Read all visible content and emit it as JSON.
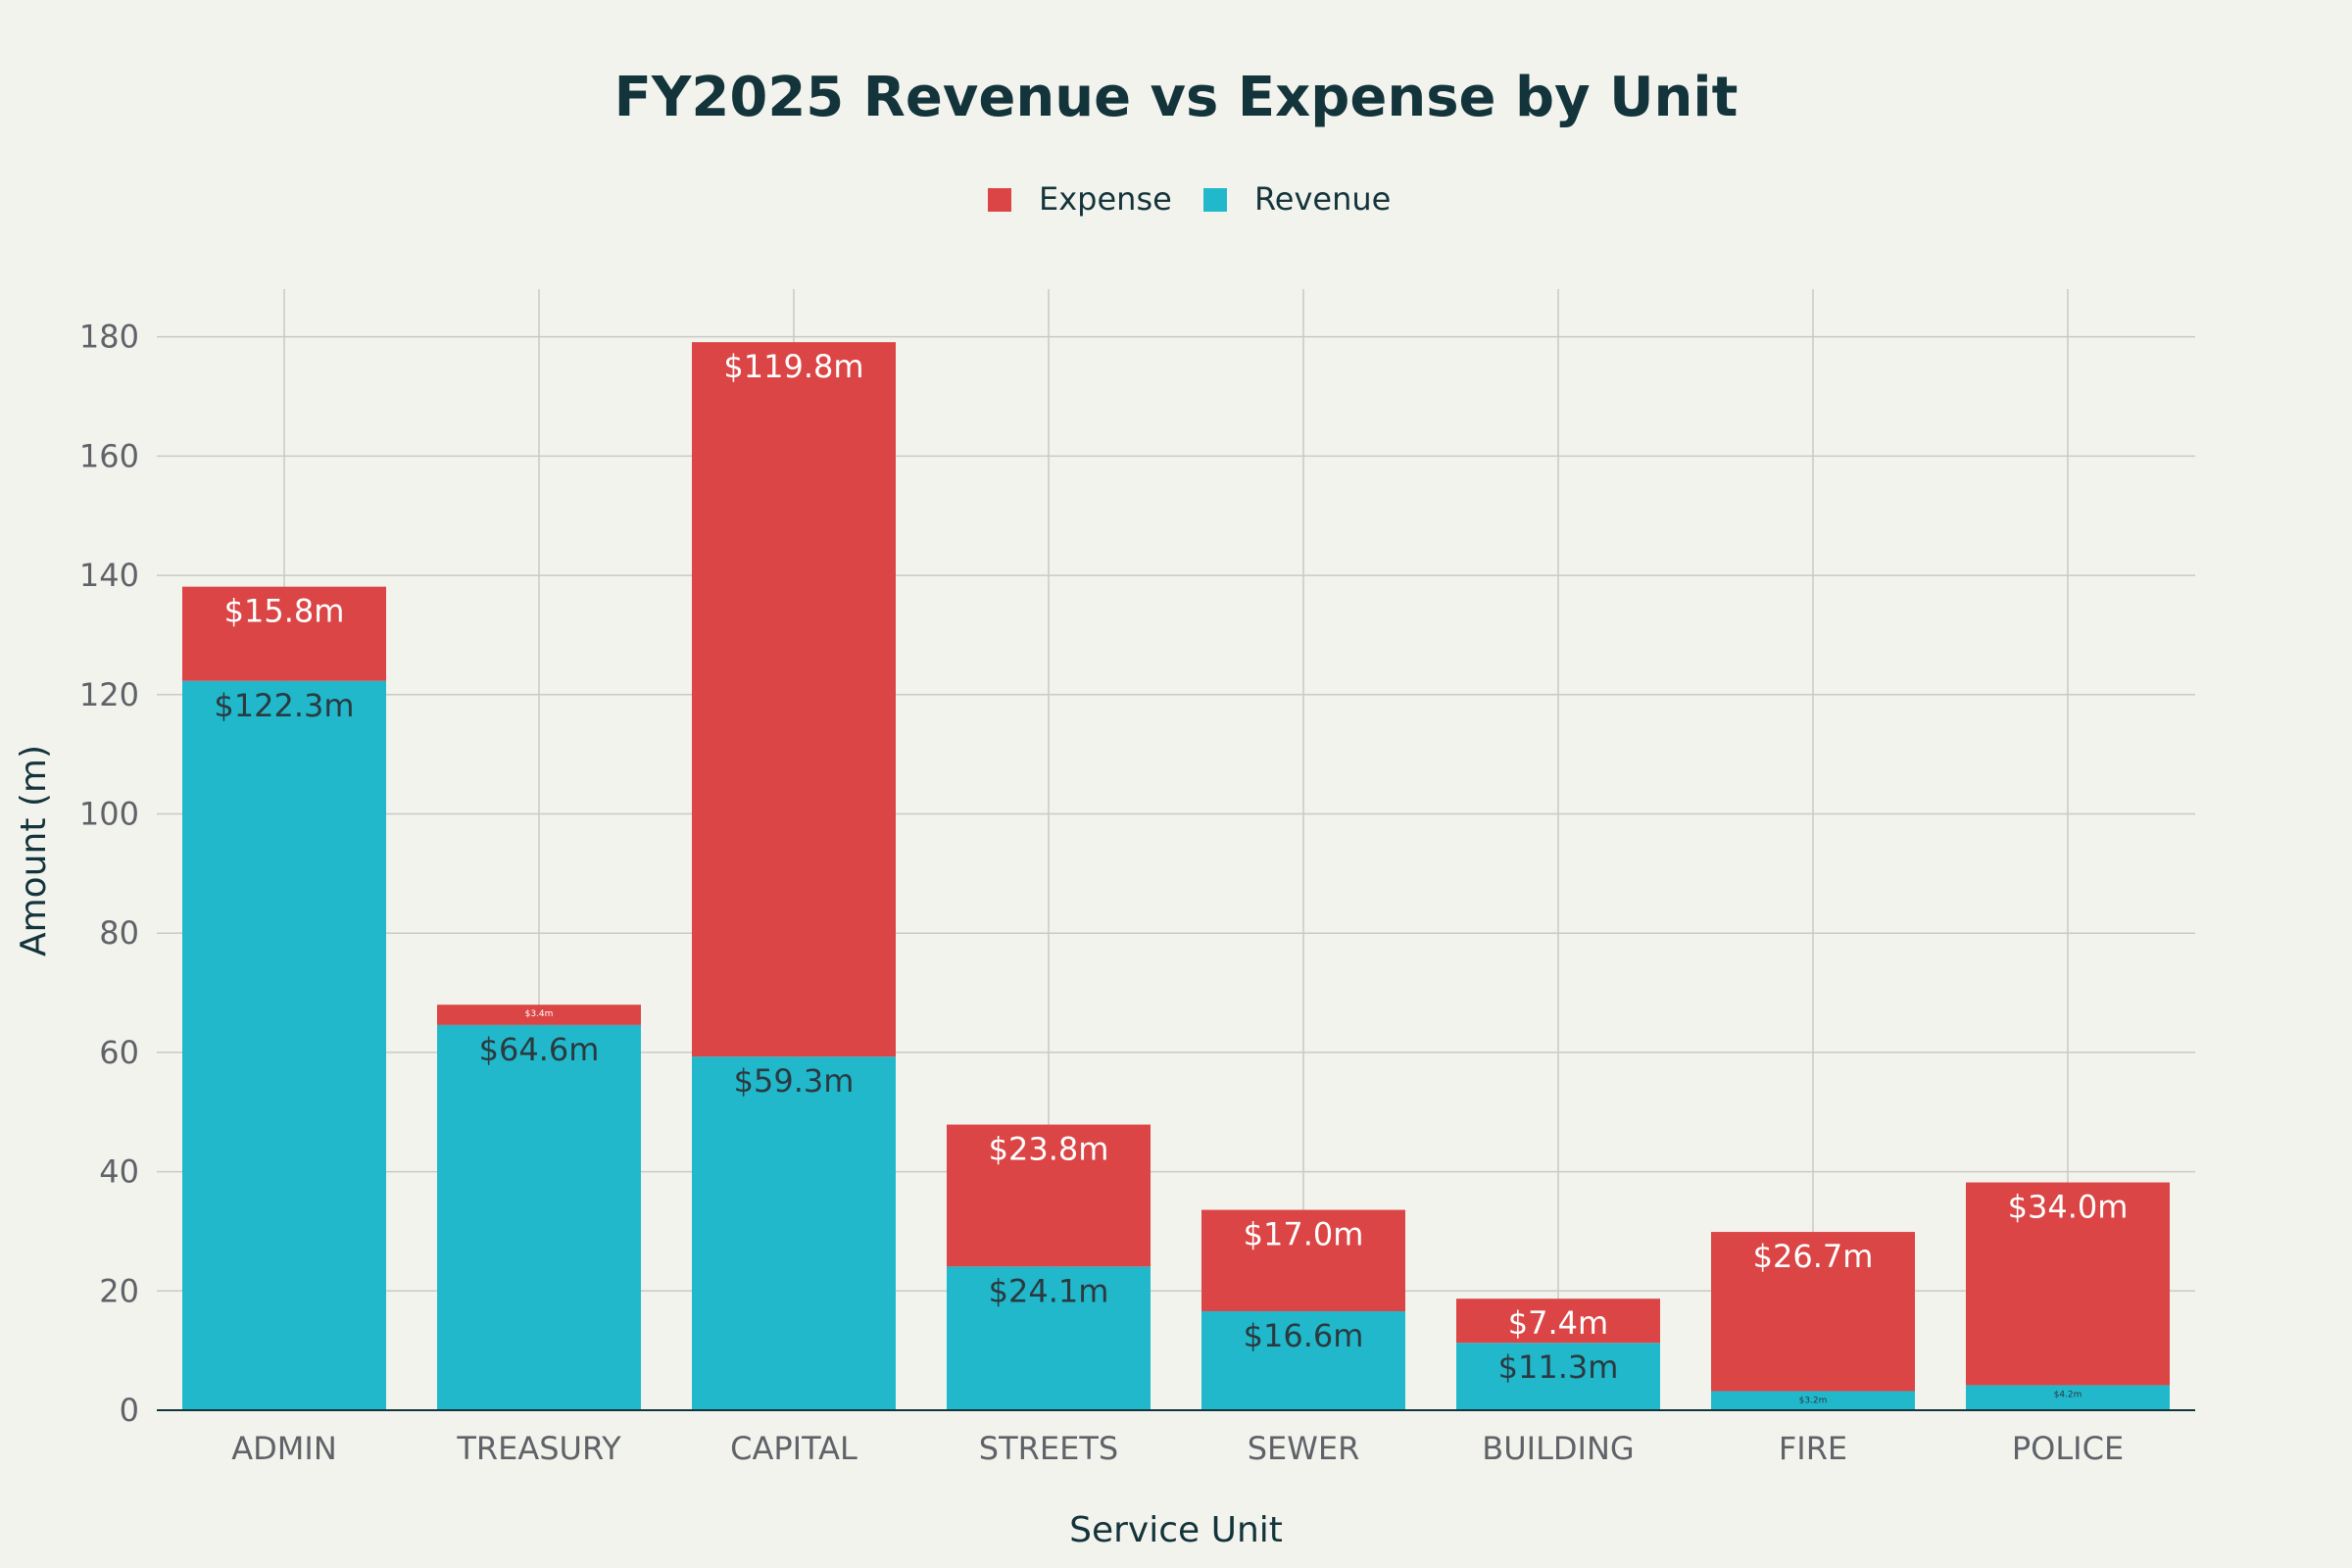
{
  "chart_data": {
    "type": "bar",
    "stacked": true,
    "title": "FY2025 Revenue vs Expense by Unit",
    "xlabel": "Service Unit",
    "ylabel": "Amount (m)",
    "ylim": [
      0,
      188
    ],
    "yticks": [
      "0",
      "20",
      "40",
      "60",
      "80",
      "100",
      "120",
      "140",
      "160",
      "180"
    ],
    "grid": true,
    "legend_position": "top-center",
    "categories": [
      "ADMIN",
      "TREASURY",
      "CAPITAL",
      "STREETS",
      "SEWER",
      "BUILDING",
      "FIRE",
      "POLICE"
    ],
    "series": [
      {
        "name": "Revenue",
        "color": "#21b8cc",
        "values": [
          122.3,
          64.6,
          59.3,
          24.1,
          16.6,
          11.3,
          3.2,
          4.2
        ],
        "labels": [
          "$122.3m",
          "$64.6m",
          "$59.3m",
          "$24.1m",
          "$16.6m",
          "$11.3m",
          "$3.2m",
          "$4.2m"
        ]
      },
      {
        "name": "Expense",
        "color": "#db4545",
        "values": [
          15.8,
          3.4,
          119.8,
          23.8,
          17.0,
          7.4,
          26.7,
          34.0
        ],
        "labels": [
          "$15.8m",
          "$3.4m",
          "$119.8m",
          "$23.8m",
          "$17.0m",
          "$7.4m",
          "$26.7m",
          "$34.0m"
        ]
      }
    ],
    "legend": [
      "Expense",
      "Revenue"
    ]
  }
}
